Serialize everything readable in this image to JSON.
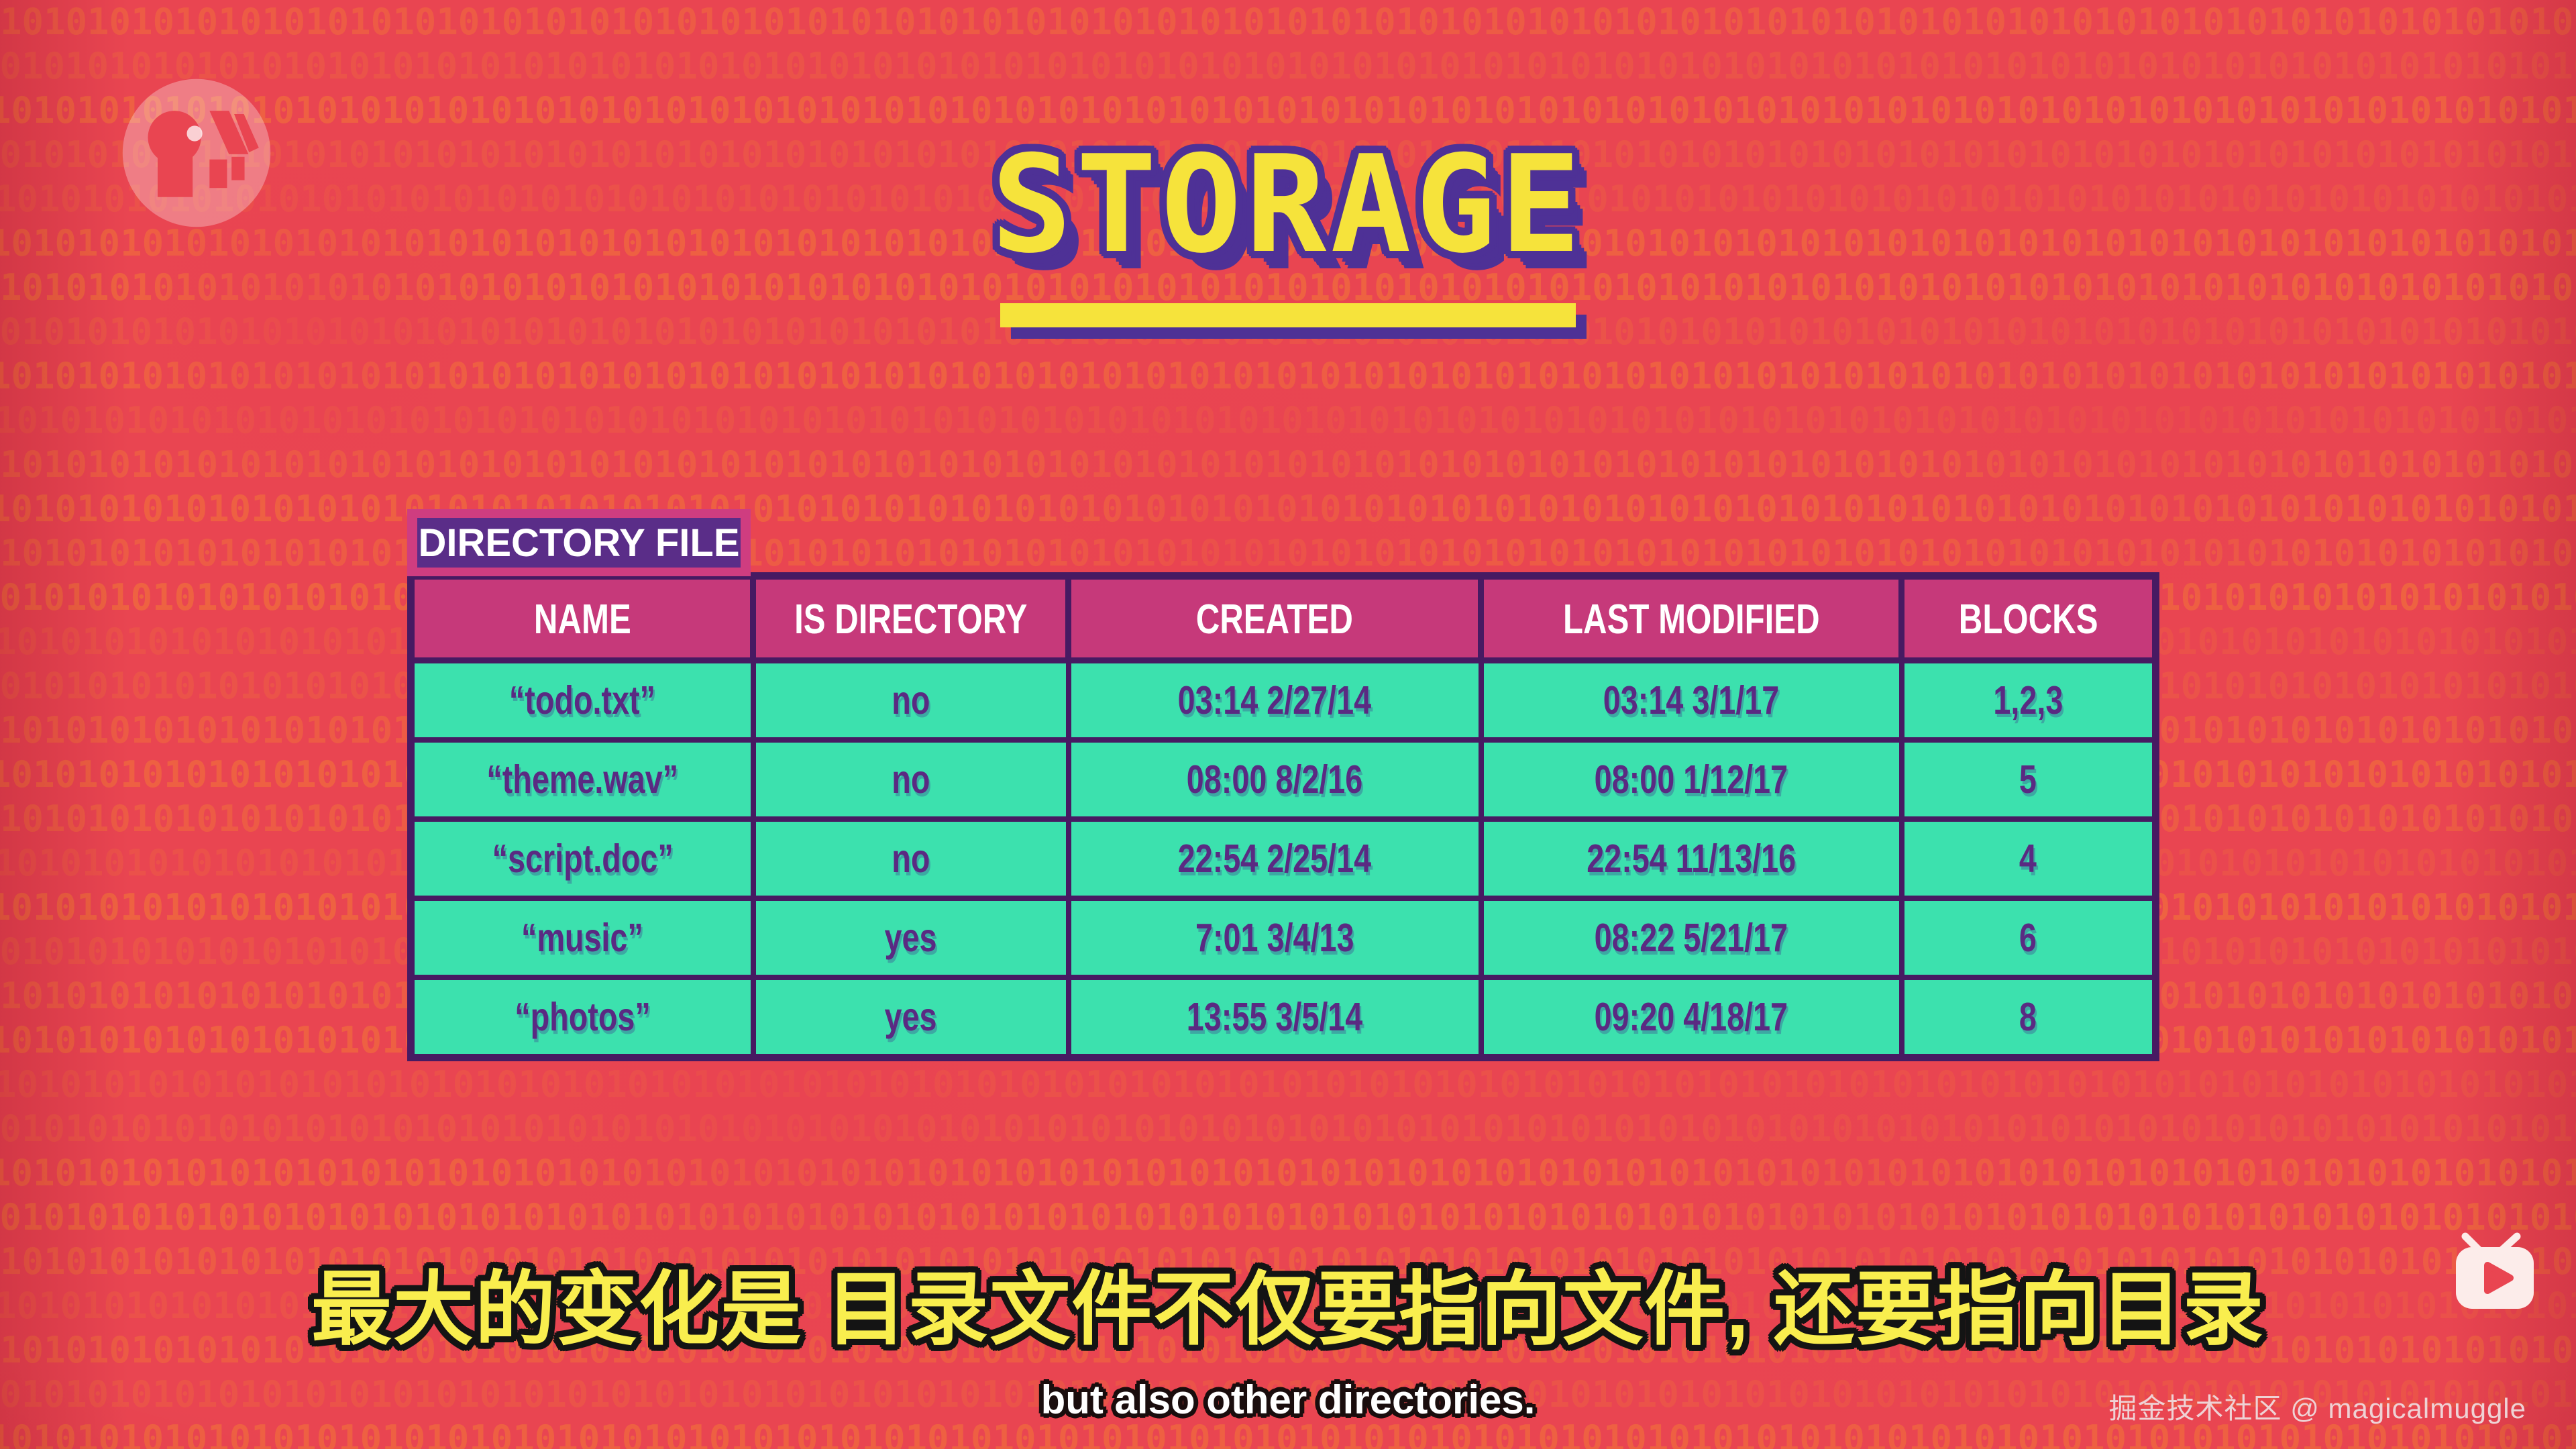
{
  "title": {
    "text": "STORAGE"
  },
  "background": {
    "pattern_digits": "10",
    "base_color": "#e94551",
    "digit_color": "#f5872f"
  },
  "directory_table": {
    "label": "DIRECTORY FILE",
    "columns": [
      "NAME",
      "IS DIRECTORY",
      "CREATED",
      "LAST MODIFIED",
      "BLOCKS"
    ],
    "rows": [
      {
        "name": "“todo.txt”",
        "is_directory": "no",
        "created": "03:14 2/27/14",
        "last_modified": "03:14 3/1/17",
        "blocks": "1,2,3"
      },
      {
        "name": "“theme.wav”",
        "is_directory": "no",
        "created": "08:00 8/2/16",
        "last_modified": "08:00 1/12/17",
        "blocks": "5"
      },
      {
        "name": "“script.doc”",
        "is_directory": "no",
        "created": "22:54 2/25/14",
        "last_modified": "22:54 11/13/16",
        "blocks": "4"
      },
      {
        "name": "“music”",
        "is_directory": "yes",
        "created": "7:01 3/4/13",
        "last_modified": "08:22 5/21/17",
        "blocks": "6"
      },
      {
        "name": "“photos”",
        "is_directory": "yes",
        "created": "13:55 3/5/14",
        "last_modified": "09:20 4/18/17",
        "blocks": "8"
      }
    ]
  },
  "subtitles": {
    "chinese": "最大的变化是 目录文件不仅要指向文件, 还要指向目录",
    "english": "but also other directories."
  },
  "watermark": {
    "credit": "掘金技术社区 @ magicalmuggle"
  },
  "icons": {
    "pbs": "pbs-circle-logo",
    "tv": "tv-play-icon"
  },
  "colors": {
    "header_bg": "#c6397a",
    "cell_bg": "#3ce1ae",
    "table_border": "#471a62",
    "tab_bg": "#5a2d88",
    "title_yellow": "#f6e33b",
    "title_purple": "#4e3196",
    "subtitle_yellow": "#f9ee4e",
    "body_text": "#5a2a82"
  }
}
